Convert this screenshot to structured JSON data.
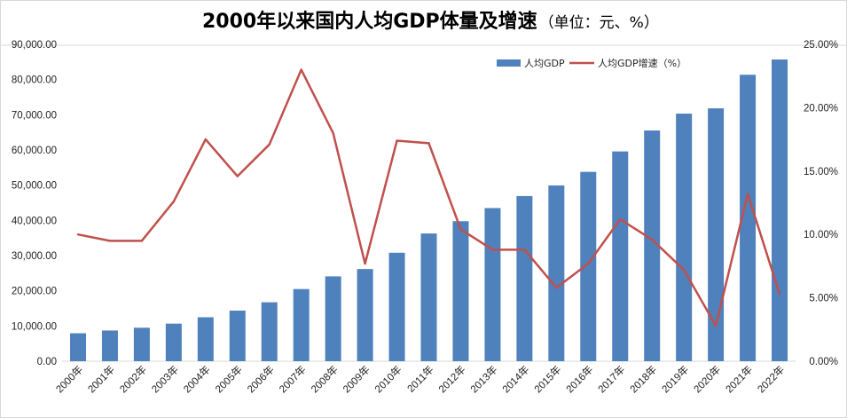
{
  "chart_data": {
    "type": "bar+line",
    "title": "2000年以来国内人均GDP体量及增速",
    "subtitle": "（单位：元、%）",
    "categories": [
      "2000年",
      "2001年",
      "2002年",
      "2003年",
      "2004年",
      "2005年",
      "2006年",
      "2007年",
      "2008年",
      "2009年",
      "2010年",
      "2011年",
      "2012年",
      "2013年",
      "2014年",
      "2015年",
      "2016年",
      "2017年",
      "2018年",
      "2019年",
      "2020年",
      "2021年",
      "2022年"
    ],
    "series": [
      {
        "name": "人均GDP",
        "type": "bar",
        "axis": "left",
        "color": "#4f81bd",
        "values": [
          7942,
          8717,
          9506,
          10666,
          12487,
          14368,
          16738,
          20494,
          24100,
          26180,
          30808,
          36277,
          39771,
          43497,
          46912,
          49922,
          53783,
          59592,
          65534,
          70328,
          71828,
          81370,
          85698
        ]
      },
      {
        "name": "人均GDP增速（%）",
        "type": "line",
        "axis": "right",
        "color": "#c0504d",
        "values": [
          10.0,
          9.5,
          9.5,
          12.6,
          17.5,
          14.6,
          17.1,
          23.0,
          18.0,
          7.7,
          17.4,
          17.2,
          10.4,
          8.8,
          8.8,
          5.8,
          7.7,
          11.2,
          9.6,
          7.2,
          2.8,
          13.2,
          5.3
        ]
      }
    ],
    "y_left": {
      "range": [
        0,
        90000
      ],
      "ticks": [
        "0.00",
        "10,000.00",
        "20,000.00",
        "30,000.00",
        "40,000.00",
        "50,000.00",
        "60,000.00",
        "70,000.00",
        "80,000.00",
        "90,000.00"
      ]
    },
    "y_right": {
      "range": [
        0,
        25
      ],
      "ticks": [
        "0.00%",
        "5.00%",
        "10.00%",
        "15.00%",
        "20.00%",
        "25.00%"
      ]
    },
    "grid": false,
    "legend_position": "top-right"
  }
}
